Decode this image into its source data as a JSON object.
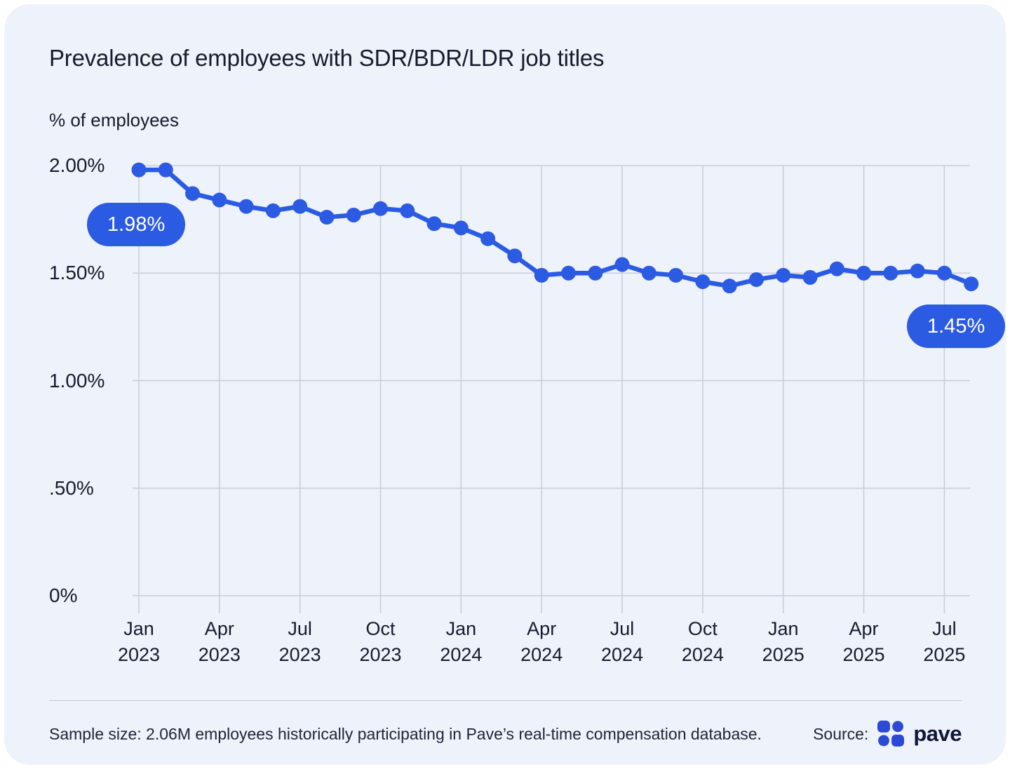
{
  "title": "Prevalence of employees with SDR/BDR/LDR job titles",
  "badges": {
    "first": "1.98%",
    "last": "1.45%"
  },
  "footer": {
    "sample_note": "Sample size: 2.06M employees historically participating in Pave’s real-time compensation database.",
    "source_label": "Source:",
    "source_name": "pave"
  },
  "colors": {
    "accent_blue": "#2B5BE3",
    "logo_blue": "#2C49D6",
    "card_bg": "#EEF2FA",
    "grid": "#C6CCDB",
    "text_dark": "#171B2D"
  },
  "icons": [
    "pave-logo-icon"
  ],
  "chart_data": {
    "type": "line",
    "title": "Prevalence of employees with SDR/BDR/LDR job titles",
    "ylabel": "% of employees",
    "xlabel": "",
    "ylim": [
      0,
      2.0
    ],
    "grid": true,
    "legend": false,
    "y_ticks": [
      {
        "value": 2.0,
        "label": "2.00%"
      },
      {
        "value": 1.5,
        "label": "1.50%"
      },
      {
        "value": 1.0,
        "label": "1.00%"
      },
      {
        "value": 0.5,
        "label": ".50%"
      },
      {
        "value": 0.0,
        "label": "0%"
      }
    ],
    "x_ticks": [
      {
        "index": 0,
        "month": "Jan",
        "year": "2023"
      },
      {
        "index": 3,
        "month": "Apr",
        "year": "2023"
      },
      {
        "index": 6,
        "month": "Jul",
        "year": "2023"
      },
      {
        "index": 9,
        "month": "Oct",
        "year": "2023"
      },
      {
        "index": 12,
        "month": "Jan",
        "year": "2024"
      },
      {
        "index": 15,
        "month": "Apr",
        "year": "2024"
      },
      {
        "index": 18,
        "month": "Jul",
        "year": "2024"
      },
      {
        "index": 21,
        "month": "Oct",
        "year": "2024"
      },
      {
        "index": 24,
        "month": "Jan",
        "year": "2025"
      },
      {
        "index": 27,
        "month": "Apr",
        "year": "2025"
      },
      {
        "index": 30,
        "month": "Jul",
        "year": "2025"
      }
    ],
    "x": [
      "Jan 2023",
      "Feb 2023",
      "Mar 2023",
      "Apr 2023",
      "May 2023",
      "Jun 2023",
      "Jul 2023",
      "Aug 2023",
      "Sep 2023",
      "Oct 2023",
      "Nov 2023",
      "Dec 2023",
      "Jan 2024",
      "Feb 2024",
      "Mar 2024",
      "Apr 2024",
      "May 2024",
      "Jun 2024",
      "Jul 2024",
      "Aug 2024",
      "Sep 2024",
      "Oct 2024",
      "Nov 2024",
      "Dec 2024",
      "Jan 2025",
      "Feb 2025",
      "Mar 2025",
      "Apr 2025",
      "May 2025",
      "Jun 2025",
      "Jul 2025",
      "Aug 2025"
    ],
    "values": [
      1.98,
      1.98,
      1.87,
      1.84,
      1.81,
      1.79,
      1.81,
      1.76,
      1.77,
      1.8,
      1.79,
      1.73,
      1.71,
      1.66,
      1.58,
      1.49,
      1.5,
      1.5,
      1.54,
      1.5,
      1.49,
      1.46,
      1.44,
      1.47,
      1.49,
      1.48,
      1.52,
      1.5,
      1.5,
      1.51,
      1.5,
      1.45
    ],
    "point_labels": {
      "first": "1.98%",
      "last": "1.45%"
    }
  }
}
